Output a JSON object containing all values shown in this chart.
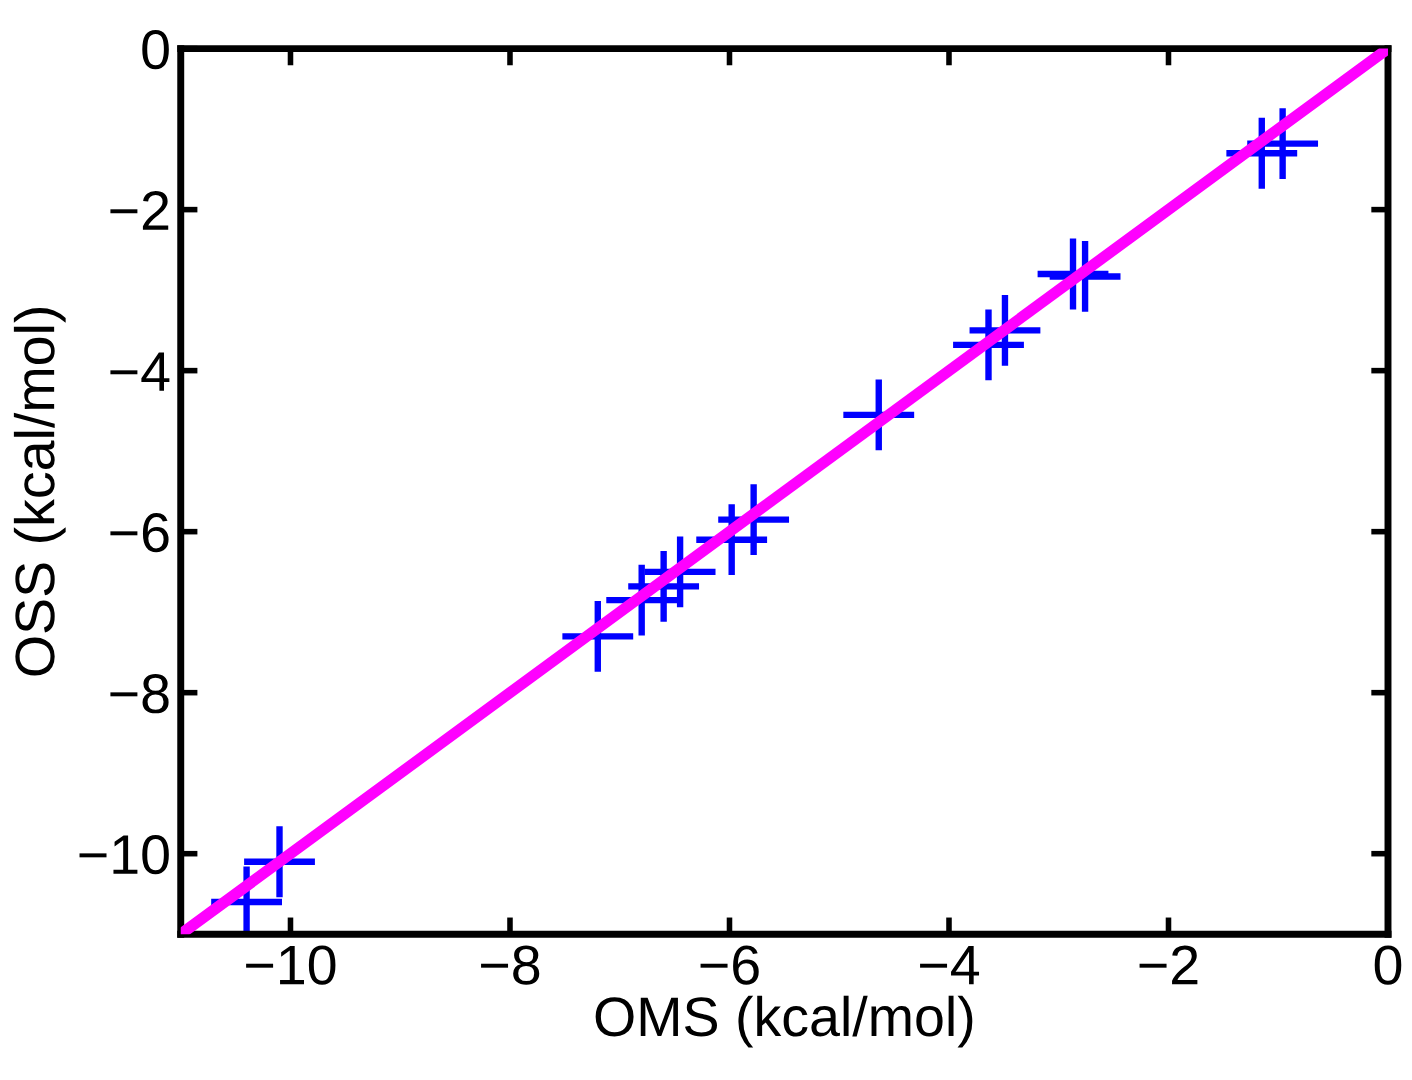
{
  "chart_data": {
    "type": "scatter",
    "xlabel": "OMS (kcal/mol)",
    "ylabel": "OSS (kcal/mol)",
    "xlim": [
      -11,
      0
    ],
    "ylim": [
      -11,
      0
    ],
    "xticks": [
      {
        "value": -10,
        "label": "−10"
      },
      {
        "value": -8,
        "label": "−8"
      },
      {
        "value": -6,
        "label": "−6"
      },
      {
        "value": -4,
        "label": "−4"
      },
      {
        "value": -2,
        "label": "−2"
      },
      0
    ],
    "yticks": [
      {
        "value": -10,
        "label": "−10"
      },
      {
        "value": -8,
        "label": "−8"
      },
      {
        "value": -6,
        "label": "−6"
      },
      {
        "value": -4,
        "label": "−4"
      },
      {
        "value": -2,
        "label": "−2"
      },
      0
    ],
    "grid": false,
    "legend": false,
    "series": [
      {
        "type": "line",
        "color": "#ff00ff",
        "marker": "none",
        "x": [
          -11,
          0
        ],
        "values": [
          -11,
          0
        ]
      },
      {
        "type": "scatter",
        "color": "#0000ff",
        "marker": "cross",
        "x": [
          -10.4,
          -10.1,
          -7.2,
          -6.8,
          -6.6,
          -6.45,
          -5.98,
          -5.78,
          -4.64,
          -3.64,
          -3.49,
          -2.87,
          -2.76,
          -1.15,
          -0.96
        ],
        "values": [
          -10.6,
          -10.1,
          -7.3,
          -6.85,
          -6.68,
          -6.5,
          -6.1,
          -5.85,
          -4.55,
          -3.68,
          -3.5,
          -2.8,
          -2.83,
          -1.3,
          -1.18
        ]
      }
    ]
  }
}
